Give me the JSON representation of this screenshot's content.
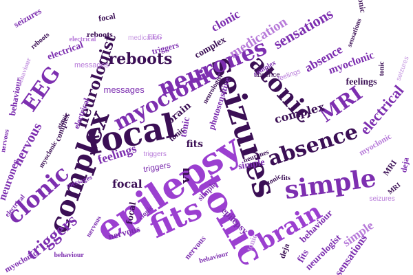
{
  "palette": {
    "dark": "#3b0f55",
    "deep": "#5c1a82",
    "mid": "#7d2fb0",
    "bright": "#9b3fd0",
    "light": "#b77ad9",
    "pale": "#c89be2"
  },
  "words": [
    {
      "text": "epilepsy",
      "color": "bright"
    },
    {
      "text": "seizures",
      "color": "dark"
    },
    {
      "text": "focal",
      "color": "dark"
    },
    {
      "text": "complex",
      "color": "dark"
    },
    {
      "text": "tonic",
      "color": "bright"
    },
    {
      "text": "simple",
      "color": "mid"
    },
    {
      "text": "absence",
      "color": "dark"
    },
    {
      "text": "atonic",
      "color": "dark"
    },
    {
      "text": "myoclonic",
      "color": "mid"
    },
    {
      "text": "neurones",
      "color": "mid"
    },
    {
      "text": "fits",
      "color": "bright"
    },
    {
      "text": "brain",
      "color": "bright"
    },
    {
      "text": "clonic",
      "color": "mid"
    },
    {
      "text": "MRI",
      "color": "mid"
    },
    {
      "text": "EEG",
      "color": "mid"
    },
    {
      "text": "electrical",
      "color": "mid"
    },
    {
      "text": "nervous",
      "color": "mid"
    },
    {
      "text": "neurologist",
      "color": "dark"
    },
    {
      "text": "sensations",
      "color": "mid"
    },
    {
      "text": "medication",
      "color": "light"
    },
    {
      "text": "reboots",
      "color": "dark"
    },
    {
      "text": "triggers",
      "color": "mid"
    },
    {
      "text": "feelings",
      "color": "mid"
    },
    {
      "text": "photosensitive",
      "color": "mid"
    },
    {
      "text": "behaviour",
      "color": "mid"
    },
    {
      "text": "messages",
      "color": "mid"
    },
    {
      "text": "focal",
      "color": "dark"
    },
    {
      "text": "reboots",
      "color": "dark"
    },
    {
      "text": "seizures",
      "color": "mid"
    },
    {
      "text": "neurones",
      "color": "mid"
    },
    {
      "text": "epilepsy",
      "color": "mid"
    },
    {
      "text": "vu",
      "color": "dark"
    },
    {
      "text": "complex",
      "color": "dark"
    },
    {
      "text": "feelings",
      "color": "dark"
    },
    {
      "text": "messages",
      "color": "light"
    },
    {
      "text": "tonic",
      "color": "dark"
    },
    {
      "text": "absence",
      "color": "mid"
    },
    {
      "text": "myoclonic",
      "color": "mid"
    },
    {
      "text": "clonic",
      "color": "mid"
    },
    {
      "text": "simple",
      "color": "light"
    },
    {
      "text": "electrical",
      "color": "mid"
    },
    {
      "text": "tonic",
      "color": "mid"
    },
    {
      "text": "complex",
      "color": "dark"
    },
    {
      "text": "fits",
      "color": "mid"
    },
    {
      "text": "simple",
      "color": "mid"
    },
    {
      "text": "sensations",
      "color": "mid"
    },
    {
      "text": "neurologist",
      "color": "mid"
    },
    {
      "text": "behaviour",
      "color": "mid"
    },
    {
      "text": "deja",
      "color": "mid"
    },
    {
      "text": "triggers",
      "color": "mid"
    },
    {
      "text": "electrical",
      "color": "mid"
    },
    {
      "text": "nervous",
      "color": "mid"
    },
    {
      "text": "fits",
      "color": "dark"
    },
    {
      "text": "MRI",
      "color": "dark"
    },
    {
      "text": "deja",
      "color": "dark"
    },
    {
      "text": "brain",
      "color": "dark"
    },
    {
      "text": "tonic",
      "color": "dark"
    },
    {
      "text": "triggers",
      "color": "mid"
    },
    {
      "text": "myoclonic",
      "color": "light"
    },
    {
      "text": "neurologist",
      "color": "dark"
    },
    {
      "text": "focal",
      "color": "dark"
    },
    {
      "text": "complex",
      "color": "dark"
    },
    {
      "text": "atonic",
      "color": "dark"
    },
    {
      "text": "seizures",
      "color": "pale"
    },
    {
      "text": "behaviour",
      "color": "mid"
    },
    {
      "text": "electrical",
      "color": "mid"
    },
    {
      "text": "myoclonic",
      "color": "dark"
    },
    {
      "text": "medication",
      "color": "pale"
    },
    {
      "text": "absence",
      "color": "dark"
    },
    {
      "text": "tonic",
      "color": "dark"
    },
    {
      "text": "nervous",
      "color": "mid"
    },
    {
      "text": "neurones",
      "color": "dark"
    },
    {
      "text": "sensations",
      "color": "dark"
    },
    {
      "text": "messages",
      "color": "mid"
    },
    {
      "text": "reboots",
      "color": "dark"
    },
    {
      "text": "tonic",
      "color": "dark"
    },
    {
      "text": "simple",
      "color": "mid"
    },
    {
      "text": "complex",
      "color": "mid"
    },
    {
      "text": "behaviour",
      "color": "mid"
    },
    {
      "text": "fits",
      "color": "dark"
    },
    {
      "text": "focal",
      "color": "dark"
    },
    {
      "text": "tonic",
      "color": "pale"
    },
    {
      "text": "nervous",
      "color": "mid"
    },
    {
      "text": "clonic",
      "color": "mid"
    },
    {
      "text": "triggers",
      "color": "light"
    },
    {
      "text": "seizures",
      "color": "light"
    },
    {
      "text": "myoclonic",
      "color": "mid"
    },
    {
      "text": "nervous",
      "color": "mid"
    },
    {
      "text": "behaviour",
      "color": "pale"
    },
    {
      "text": "MRI",
      "color": "dark"
    },
    {
      "text": "EEG",
      "color": "light"
    },
    {
      "text": "feelings",
      "color": "light"
    },
    {
      "text": "electrical",
      "color": "light"
    }
  ]
}
